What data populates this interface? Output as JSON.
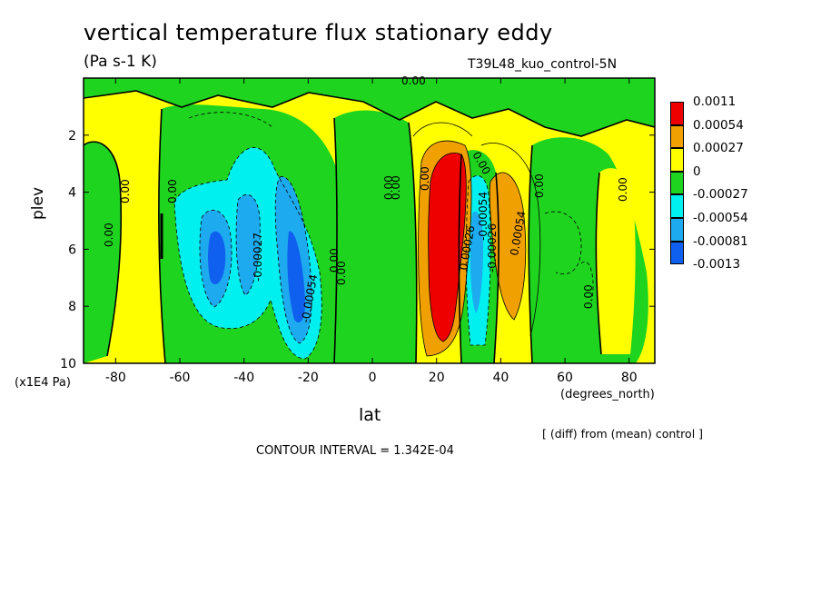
{
  "title": "vertical temperature flux stationary eddy",
  "units": "(Pa s-1 K)",
  "experiment": "T39L48_kuo_control-5N",
  "x_unit_label": "(x1E4 Pa)",
  "x_axis_name": "lat",
  "x_axis_units": "(degrees_north)",
  "y_axis_name": "plev",
  "diff_note": "[ (diff) from (mean) control ]",
  "contour_interval": "CONTOUR INTERVAL = 1.342E-04",
  "legend": [
    {
      "label": "0.0011",
      "color": "#ee0000"
    },
    {
      "label": "0.00054",
      "color": "#f0a000"
    },
    {
      "label": "0.00027",
      "color": "#ffff00"
    },
    {
      "label": "0",
      "color": "#1ed41e"
    },
    {
      "label": "-0.00027",
      "color": "#00f0f0"
    },
    {
      "label": "-0.00054",
      "color": "#1eaaee"
    },
    {
      "label": "-0.00081",
      "color": "#1060f0"
    },
    {
      "label": "-0.0013",
      "color": null
    }
  ],
  "contour_labels": [
    "0.00",
    "0.00",
    "0.00",
    "0.00",
    "0.00",
    "0.00",
    "0.00",
    "0.00",
    "0.00",
    "0.00",
    "0.00",
    "0.00",
    "0.00",
    "-0.00027",
    "-0.00054",
    "-0.00026",
    "0.00026",
    "-0.00054",
    "0.00054"
  ],
  "chart_data": {
    "type": "heatmap",
    "title": "vertical temperature flux stationary eddy",
    "xlabel": "lat",
    "ylabel": "plev",
    "xlim": [
      -90,
      88
    ],
    "ylim": [
      10,
      0
    ],
    "x_ticks": [
      -80,
      -60,
      -40,
      -20,
      0,
      20,
      40,
      60,
      80
    ],
    "y_ticks": [
      2,
      4,
      6,
      8,
      10
    ],
    "levels": [
      -0.0013,
      -0.00081,
      -0.00054,
      -0.00027,
      0,
      0.00027,
      0.00054,
      0.0011
    ],
    "features": [
      {
        "lat": -86,
        "plev": 5.5,
        "value": 0.00015
      },
      {
        "lat": -72,
        "plev": 6.0,
        "value": 0.0002
      },
      {
        "lat": -62,
        "plev": 5.5,
        "value": -0.0001
      },
      {
        "lat": -48,
        "plev": 6.2,
        "value": -0.00085
      },
      {
        "lat": -38,
        "plev": 6.0,
        "value": -0.00065
      },
      {
        "lat": -26,
        "plev": 5.0,
        "value": -0.0007
      },
      {
        "lat": -20,
        "plev": 7.5,
        "value": -0.00085
      },
      {
        "lat": -10,
        "plev": 5.0,
        "value": 0.0002
      },
      {
        "lat": 26,
        "plev": 6.0,
        "value": 0.0011
      },
      {
        "lat": 34,
        "plev": 6.3,
        "value": -0.0006
      },
      {
        "lat": 44,
        "plev": 5.8,
        "value": 0.00054
      },
      {
        "lat": 68,
        "plev": 5.0,
        "value": -0.0001
      },
      {
        "lat": 80,
        "plev": 5.0,
        "value": 0.00015
      }
    ]
  }
}
